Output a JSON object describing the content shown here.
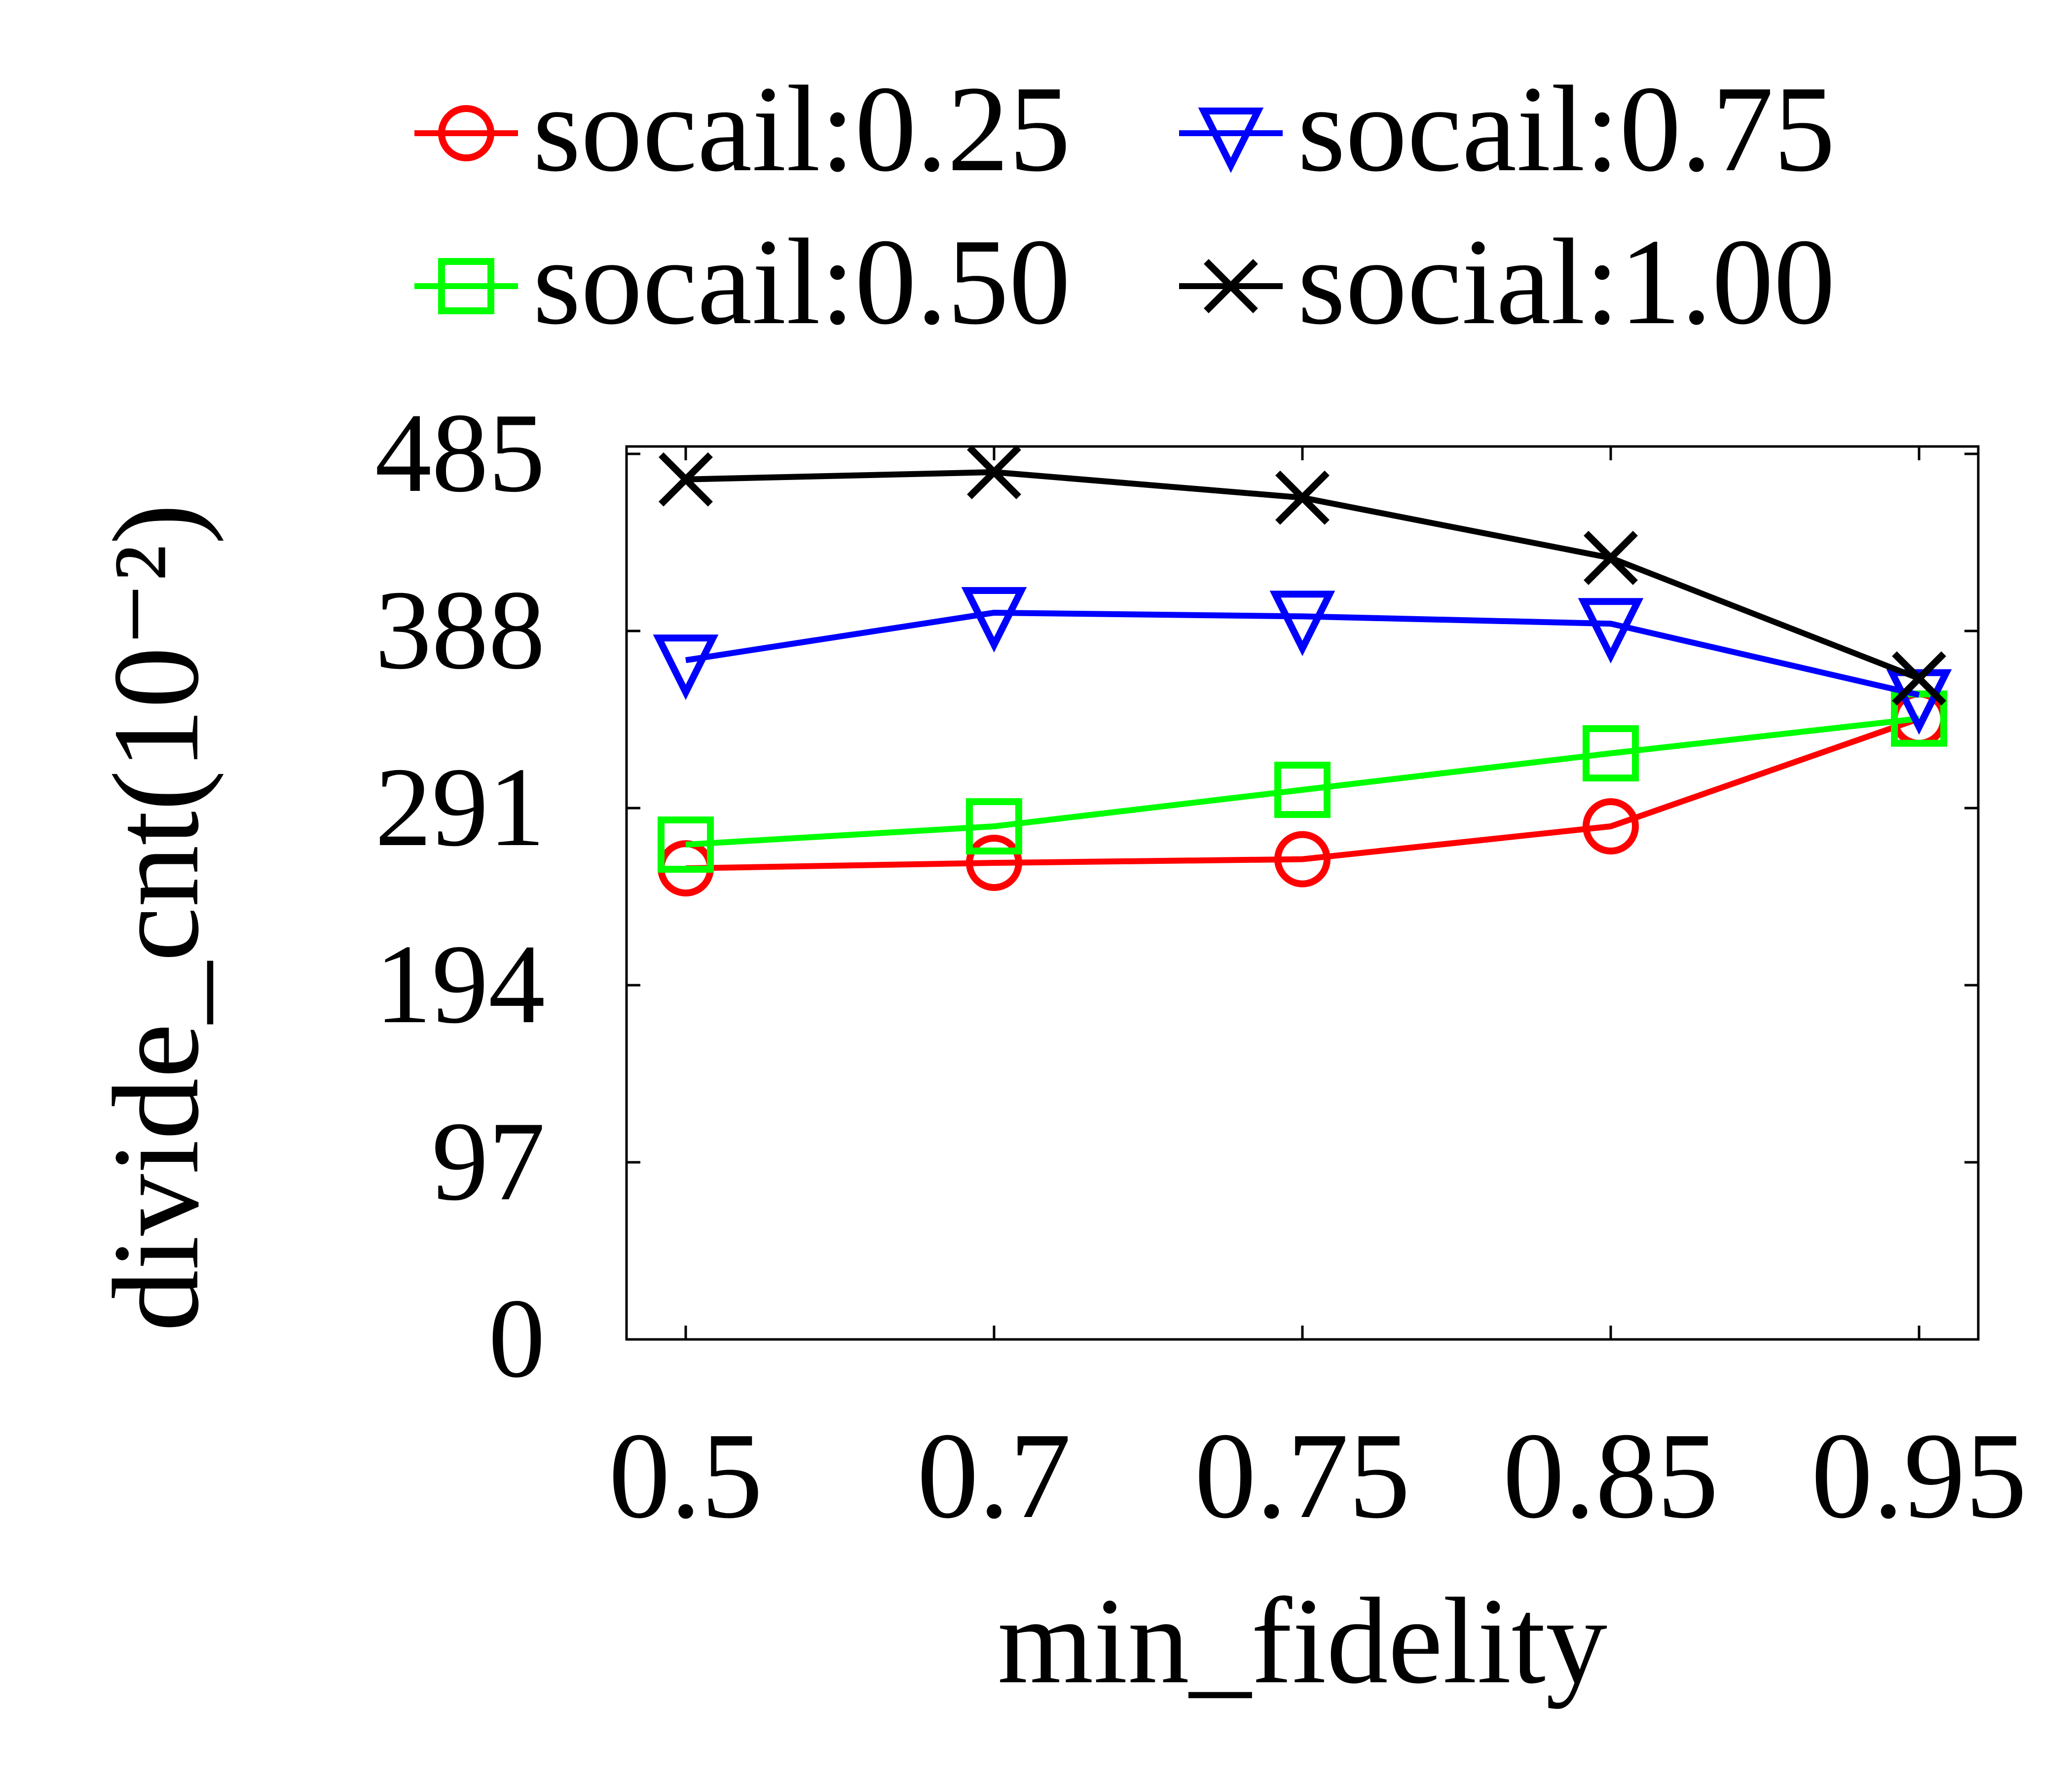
{
  "chart_data": {
    "type": "line",
    "title": "",
    "xlabel": "min_fidelity",
    "ylabel": "divide_cnt(10⁻²)",
    "x": [
      "0.5",
      "0.7",
      "0.75",
      "0.85",
      "0.95"
    ],
    "yticks": [
      0,
      97,
      194,
      291,
      388,
      485
    ],
    "ylim": [
      0,
      485
    ],
    "grid": false,
    "legend": {
      "placement": "top",
      "columns": 2
    },
    "series": [
      {
        "name": "socail:0.25",
        "color": "#ff0000",
        "marker": "circle",
        "values": [
          258,
          261,
          263,
          281,
          340
        ]
      },
      {
        "name": "socail:0.50",
        "color": "#00ff00",
        "marker": "square",
        "values": [
          271,
          281,
          301,
          321,
          340
        ]
      },
      {
        "name": "socail:0.75",
        "color": "#0000ff",
        "marker": "triangle-down",
        "values": [
          372,
          398,
          396,
          392,
          353
        ]
      },
      {
        "name": "social:1.00",
        "color": "#000000",
        "marker": "x",
        "values": [
          471,
          475,
          461,
          428,
          362
        ]
      }
    ]
  }
}
